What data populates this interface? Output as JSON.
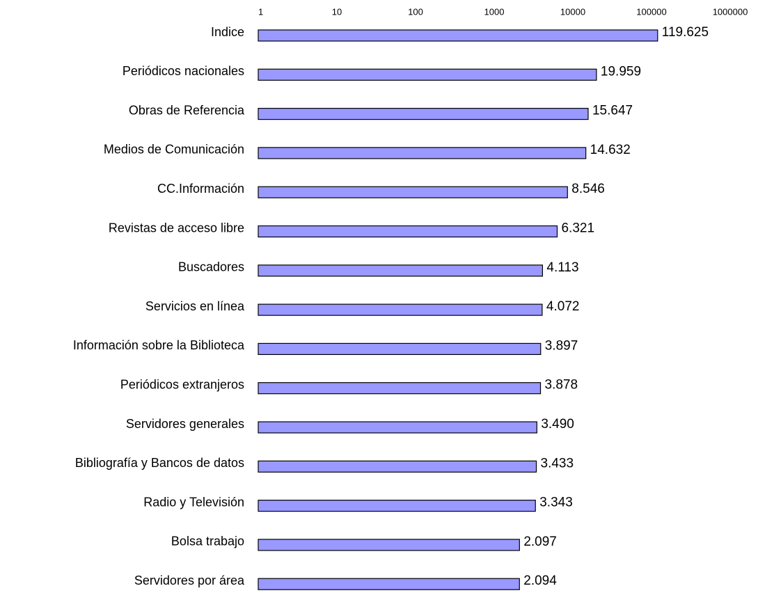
{
  "chart_data": {
    "type": "bar",
    "orientation": "horizontal",
    "log_scale": true,
    "grid": false,
    "color": "#9999ff",
    "categories": [
      "Indice",
      "Periódicos nacionales",
      "Obras de Referencia",
      "Medios de Comunicación",
      "CC.Información",
      "Revistas de acceso libre",
      "Buscadores",
      "Servicios en línea",
      "Información sobre la Biblioteca",
      "Periódicos extranjeros",
      "Servidores generales",
      "Bibliografía y Bancos de datos",
      "Radio y Televisión",
      "Bolsa trabajo",
      "Servidores por área"
    ],
    "values": [
      119625,
      19959,
      15647,
      14632,
      8546,
      6321,
      4113,
      4072,
      3897,
      3878,
      3490,
      3433,
      3343,
      2097,
      2094
    ],
    "value_labels": [
      "119.625",
      "19.959",
      "15.647",
      "14.632",
      "8.546",
      "6.321",
      "4.113",
      "4.072",
      "3.897",
      "3.878",
      "3.490",
      "3.433",
      "3.343",
      "2.097",
      "2.094"
    ],
    "xlim": [
      1,
      1000000
    ],
    "xticks": [
      1,
      10,
      100,
      1000,
      10000,
      100000,
      1000000
    ]
  }
}
